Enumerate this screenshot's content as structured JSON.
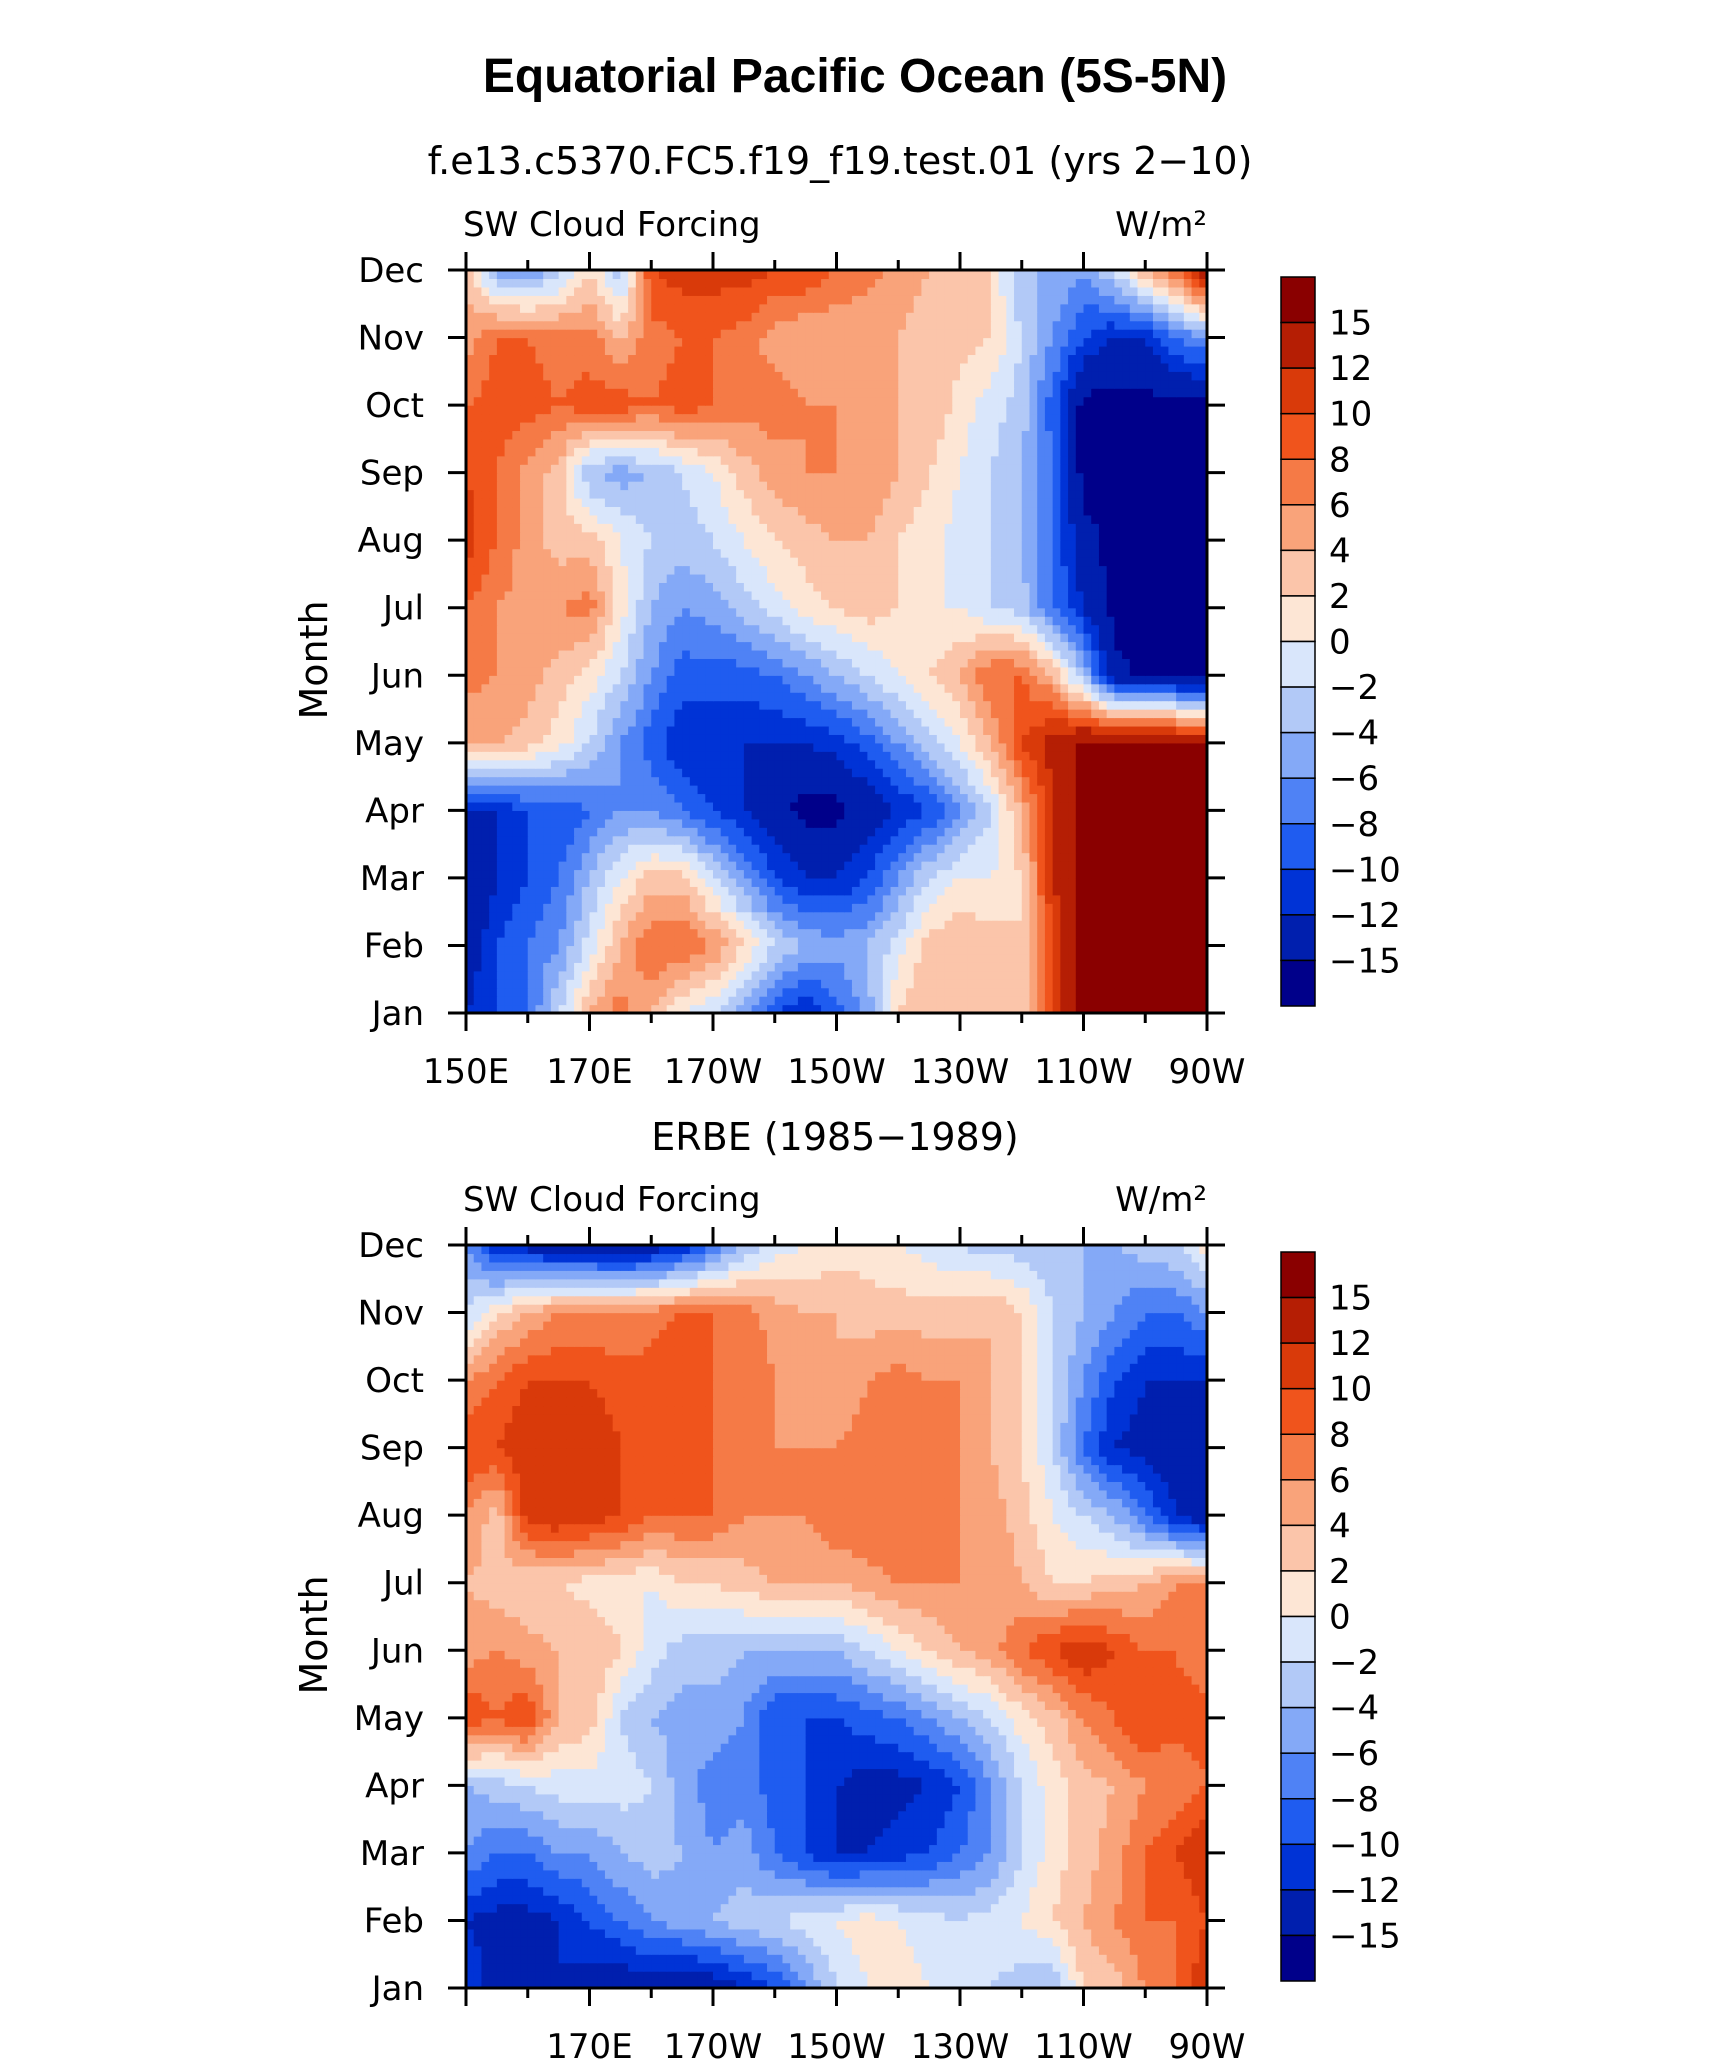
{
  "page": {
    "title": "Equatorial Pacific Ocean (5S-5N)"
  },
  "colors": {
    "palette": [
      "#00008a",
      "#001fae",
      "#0033d6",
      "#1f5cf0",
      "#4f82f5",
      "#84a9f7",
      "#b2c9f7",
      "#d9e6fb",
      "#fde6d5",
      "#fbc5aa",
      "#f9a37a",
      "#f57a46",
      "#f0541c",
      "#d93a0a",
      "#b51e04",
      "#8a0000"
    ]
  },
  "chart_data": [
    {
      "type": "heatmap",
      "subtitle": "f.e13.c5370.FC5.f19_f19.test.01 (yrs 2−10)",
      "left_label": "SW Cloud Forcing",
      "right_label": "W/m²",
      "ylabel": "Month",
      "x_tick_labels": [
        "150E",
        "170E",
        "170W",
        "150W",
        "130W",
        "110W",
        "90W"
      ],
      "y_tick_labels": [
        "Jan",
        "Feb",
        "Mar",
        "Apr",
        "May",
        "Jun",
        "Jul",
        "Aug",
        "Sep",
        "Oct",
        "Nov",
        "Dec"
      ],
      "colorbar_labels": [
        "15",
        "12",
        "10",
        "8",
        "6",
        "4",
        "2",
        "0",
        "−2",
        "−4",
        "−6",
        "−8",
        "−10",
        "−12",
        "−15"
      ],
      "levels": [
        -15,
        -12,
        -10,
        -8,
        -6,
        -4,
        -2,
        0,
        2,
        4,
        6,
        8,
        10,
        12,
        15
      ],
      "x_range": [
        150,
        270
      ],
      "grid": [
        [
          -12,
          -10,
          -8,
          -2,
          4,
          7,
          4,
          0,
          -2,
          -6,
          -10,
          -12,
          -9,
          -5,
          2,
          4,
          4,
          2,
          2,
          10,
          16,
          16,
          16,
          16,
          16
        ],
        [
          -14,
          -10,
          -8,
          -6,
          -1,
          4,
          8,
          8,
          6,
          2,
          -2,
          -4,
          -5,
          -4,
          -1,
          3,
          4,
          3,
          2,
          10,
          16,
          16,
          16,
          16,
          16
        ],
        [
          -15,
          -12,
          -10,
          -8,
          -4,
          0,
          3,
          3,
          -2,
          -6,
          -10,
          -12,
          -12,
          -10,
          -6,
          -2,
          0,
          0,
          2,
          12,
          16,
          16,
          16,
          16,
          16
        ],
        [
          -12,
          -12,
          -10,
          -10,
          -8,
          -6,
          -6,
          -8,
          -10,
          -12,
          -14,
          -16,
          -16,
          -14,
          -12,
          -10,
          -6,
          -2,
          4,
          12,
          16,
          16,
          16,
          16,
          16
        ],
        [
          4,
          4,
          3,
          1,
          -2,
          -6,
          -9,
          -12,
          -12,
          -12,
          -12,
          -12,
          -11,
          -9,
          -6,
          -3,
          0,
          4,
          10,
          13,
          16,
          16,
          16,
          16,
          15
        ],
        [
          7,
          6,
          5,
          3,
          1,
          -2,
          -6,
          -9,
          -9,
          -9,
          -8,
          -6,
          -4,
          -2,
          0,
          2,
          4,
          8,
          8,
          4,
          -4,
          -14,
          -16,
          -16,
          -16
        ],
        [
          8,
          6,
          5,
          6,
          7,
          1,
          -4,
          -6,
          -5,
          -3,
          -1,
          1,
          2,
          3,
          2,
          0,
          0,
          -2,
          -3,
          -8,
          -12,
          -16,
          -16,
          -16,
          -16
        ],
        [
          11,
          8,
          5,
          3,
          3,
          0,
          -2,
          -3,
          -2,
          0,
          2,
          3,
          4,
          4,
          2,
          1,
          -1,
          -2,
          -4,
          -8,
          -14,
          -16,
          -16,
          -16,
          -16
        ],
        [
          10,
          8,
          5,
          3,
          -4,
          -5,
          -4,
          -2,
          0,
          3,
          5,
          6,
          6,
          6,
          4,
          2,
          0,
          -2,
          -4,
          -8,
          -16,
          -16,
          -16,
          -16,
          -16
        ],
        [
          8,
          9,
          9,
          8,
          9,
          9,
          8,
          9,
          8,
          7,
          7,
          6,
          6,
          5,
          4,
          4,
          1,
          -1,
          -3,
          -9,
          -16,
          -16,
          -16,
          -16,
          -16
        ],
        [
          5,
          8,
          8,
          7,
          7,
          4,
          7,
          8,
          8,
          7,
          5,
          4,
          4,
          4,
          4,
          3,
          3,
          2,
          -2,
          -6,
          -10,
          -12,
          -12,
          -8,
          -6
        ],
        [
          4,
          -5,
          -6,
          -3,
          2,
          -4,
          10,
          11,
          11,
          11,
          10,
          10,
          8,
          7,
          5,
          4,
          4,
          2,
          -4,
          -4,
          -6,
          -2,
          4,
          8,
          15
        ]
      ]
    },
    {
      "type": "heatmap",
      "subtitle": "ERBE (1985−1989)",
      "left_label": "SW Cloud Forcing",
      "right_label": "W/m²",
      "ylabel": "Month",
      "x_tick_labels": [
        "170E",
        "170W",
        "150W",
        "130W",
        "110W",
        "90W"
      ],
      "y_tick_labels": [
        "Jan",
        "Feb",
        "Mar",
        "Apr",
        "May",
        "Jun",
        "Jul",
        "Aug",
        "Sep",
        "Oct",
        "Nov",
        "Dec"
      ],
      "colorbar_labels": [
        "15",
        "12",
        "10",
        "8",
        "6",
        "4",
        "2",
        "0",
        "−2",
        "−4",
        "−6",
        "−8",
        "−10",
        "−12",
        "−15"
      ],
      "levels": [
        -15,
        -12,
        -10,
        -8,
        -6,
        -4,
        -2,
        0,
        2,
        4,
        6,
        8,
        10,
        12,
        15
      ],
      "x_range": [
        150,
        270
      ],
      "grid": [
        [
          -10,
          -14,
          -13,
          -12,
          -13,
          -14,
          -14,
          -15,
          -14,
          -12,
          -10,
          -6,
          -2,
          0,
          1,
          0,
          -2,
          -2,
          -3,
          -4,
          2,
          3,
          6,
          8,
          12
        ],
        [
          -12,
          -13,
          -13,
          -12,
          -10,
          -8,
          -6,
          -5,
          -4,
          -3,
          -2,
          -1,
          0,
          1,
          0,
          -1,
          -2,
          -1,
          0,
          2,
          4,
          6,
          8,
          8,
          10
        ],
        [
          -6,
          -8,
          -8,
          -6,
          -6,
          -4,
          -3,
          -4,
          -6,
          -5,
          -8,
          -10,
          -12,
          -12,
          -11,
          -10,
          -8,
          -6,
          -2,
          1,
          3,
          5,
          8,
          10,
          12
        ],
        [
          -4,
          -3,
          -2,
          -1,
          -1,
          -1,
          -2,
          -5,
          -7,
          -7,
          -9,
          -10,
          -12,
          -13,
          -13,
          -12,
          -10,
          -6,
          -2,
          1,
          3,
          4,
          6,
          6,
          8
        ],
        [
          10,
          8,
          10,
          4,
          3,
          -2,
          -4,
          -5,
          -5,
          -6,
          -10,
          -10,
          -10,
          -9,
          -8,
          -6,
          -4,
          -2,
          1,
          3,
          6,
          8,
          10,
          9,
          9
        ],
        [
          5,
          6,
          5,
          4,
          4,
          2,
          -1,
          -3,
          -3,
          -4,
          -4,
          -4,
          -4,
          -2,
          0,
          2,
          4,
          5,
          8,
          10,
          12,
          10,
          8,
          8,
          6
        ],
        [
          4,
          3,
          2,
          2,
          1,
          1,
          0,
          2,
          2,
          3,
          4,
          4,
          4,
          5,
          6,
          6,
          6,
          6,
          4,
          2,
          2,
          3,
          4,
          6,
          6
        ],
        [
          6,
          3,
          11,
          12,
          11,
          10,
          8,
          8,
          8,
          6,
          6,
          6,
          8,
          8,
          8,
          7,
          6,
          5,
          3,
          0,
          -2,
          -4,
          -8,
          -12,
          -14
        ],
        [
          10,
          10,
          12,
          12,
          12,
          10,
          9,
          10,
          8,
          7,
          6,
          6,
          6,
          7,
          7,
          6,
          6,
          4,
          2,
          -2,
          -8,
          -12,
          -13,
          -14,
          -14
        ],
        [
          6,
          8,
          10,
          10,
          10,
          9,
          9,
          10,
          8,
          8,
          6,
          5,
          4,
          6,
          7,
          6,
          6,
          4,
          2,
          -2,
          -6,
          -10,
          -12,
          -12,
          -12
        ],
        [
          -2,
          2,
          4,
          6,
          6,
          6,
          7,
          8,
          8,
          7,
          5,
          4,
          4,
          3,
          3,
          3,
          3,
          4,
          2,
          -2,
          -4,
          -6,
          -8,
          -8,
          -6
        ],
        [
          -6,
          -12,
          -13,
          -14,
          -14,
          -15,
          -14,
          -12,
          -8,
          -4,
          -1,
          0,
          1,
          1,
          0,
          -1,
          -2,
          -3,
          -3,
          -4,
          -4,
          -4,
          -3,
          -2,
          1
        ]
      ]
    }
  ]
}
